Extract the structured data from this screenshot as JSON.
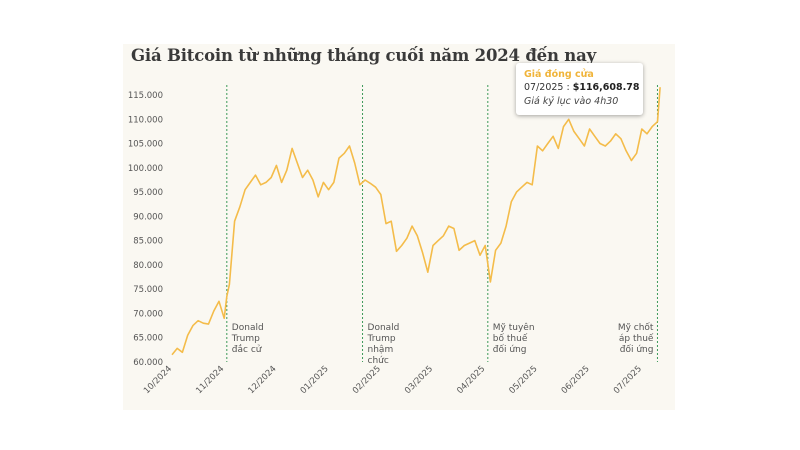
{
  "chart_data": {
    "type": "line",
    "title": "Giá Bitcoin từ những tháng cuối năm 2024 đến nay",
    "xlabel": "",
    "ylabel": "",
    "ylim": [
      60000,
      117000
    ],
    "yticks": [
      "60.000",
      "65.000",
      "70.000",
      "75.000",
      "80.000",
      "85.000",
      "90.000",
      "95.000",
      "100.000",
      "105.000",
      "110.000",
      "115.000"
    ],
    "ytick_values": [
      60000,
      65000,
      70000,
      75000,
      80000,
      85000,
      90000,
      95000,
      100000,
      105000,
      110000,
      115000
    ],
    "xticks": [
      "10/2024",
      "11/2024",
      "12/2024",
      "01/2025",
      "02/2025",
      "03/2025",
      "04/2025",
      "05/2025",
      "06/2025",
      "07/2025"
    ],
    "xtick_values": [
      0,
      1,
      2,
      3,
      4,
      5,
      6,
      7,
      8,
      9
    ],
    "line_color": "#f4bc4a",
    "series": [
      {
        "name": "Giá đóng cửa",
        "x": [
          0.0,
          0.1,
          0.2,
          0.3,
          0.4,
          0.5,
          0.6,
          0.7,
          0.8,
          0.9,
          1.0,
          1.05,
          1.1,
          1.2,
          1.3,
          1.4,
          1.5,
          1.6,
          1.7,
          1.8,
          1.9,
          2.0,
          2.1,
          2.2,
          2.3,
          2.4,
          2.5,
          2.6,
          2.7,
          2.8,
          2.9,
          3.0,
          3.1,
          3.2,
          3.3,
          3.4,
          3.5,
          3.6,
          3.7,
          3.8,
          3.9,
          4.0,
          4.1,
          4.2,
          4.3,
          4.4,
          4.5,
          4.6,
          4.7,
          4.8,
          4.9,
          5.0,
          5.1,
          5.2,
          5.3,
          5.4,
          5.5,
          5.6,
          5.7,
          5.8,
          5.9,
          6.0,
          6.1,
          6.2,
          6.3,
          6.4,
          6.5,
          6.6,
          6.7,
          6.8,
          6.9,
          7.0,
          7.1,
          7.2,
          7.3,
          7.4,
          7.5,
          7.6,
          7.7,
          7.8,
          7.9,
          8.0,
          8.1,
          8.2,
          8.3,
          8.4,
          8.5,
          8.6,
          8.7,
          8.8,
          8.9,
          9.0,
          9.1,
          9.2,
          9.3,
          9.35
        ],
        "y": [
          61500,
          62800,
          62000,
          65500,
          67500,
          68500,
          68000,
          67800,
          70500,
          72500,
          69000,
          73500,
          76000,
          89000,
          92000,
          95500,
          97000,
          98500,
          96500,
          97000,
          98000,
          100500,
          97000,
          99500,
          104000,
          101000,
          98000,
          99500,
          97500,
          94000,
          97000,
          95500,
          97000,
          102000,
          103000,
          104500,
          101000,
          96500,
          97500,
          96800,
          96000,
          94500,
          88500,
          89000,
          82800,
          84000,
          85500,
          88000,
          86000,
          82500,
          78500,
          84000,
          85000,
          86000,
          88000,
          87500,
          83000,
          84000,
          84500,
          85000,
          82000,
          84000,
          76500,
          83000,
          84500,
          88000,
          93000,
          95000,
          96000,
          97000,
          96500,
          104500,
          103500,
          105000,
          106500,
          104000,
          108500,
          110000,
          107500,
          106000,
          104500,
          108000,
          106500,
          105000,
          104500,
          105500,
          107000,
          106000,
          103500,
          101500,
          103000,
          108000,
          107000,
          108500,
          109500,
          116608
        ]
      }
    ],
    "events": [
      {
        "x": 1.05,
        "lines": [
          "Donald",
          "Trump",
          "đắc cử"
        ]
      },
      {
        "x": 3.65,
        "lines": [
          "Donald",
          "Trump",
          "nhậm",
          "chức"
        ]
      },
      {
        "x": 6.05,
        "lines": [
          "Mỹ tuyên",
          "bố thuế",
          "đối ứng"
        ]
      },
      {
        "x": 9.3,
        "lines": [
          "Mỹ chốt",
          "áp thuế",
          "đối ứng"
        ]
      }
    ],
    "tooltip": {
      "title": "Giá đóng cửa",
      "label": "07/2025 : ",
      "value": "$116,608.78",
      "note": "Giá kỷ lục vào 4h30"
    }
  }
}
